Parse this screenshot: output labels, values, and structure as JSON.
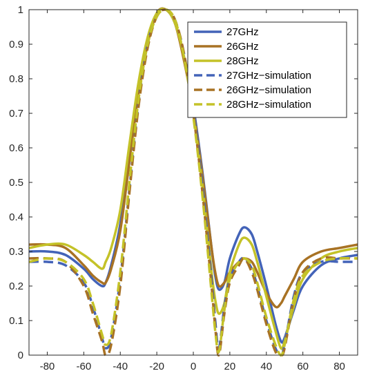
{
  "chart_data": {
    "type": "line",
    "title": "",
    "xlabel": "",
    "ylabel": "",
    "xlim": [
      -90,
      90
    ],
    "ylim": [
      0,
      1
    ],
    "xticks": [
      -80,
      -60,
      -40,
      -20,
      0,
      20,
      40,
      60,
      80
    ],
    "yticks": [
      0,
      0.1,
      0.2,
      0.3,
      0.4,
      0.5,
      0.6,
      0.7,
      0.8,
      0.9,
      1
    ],
    "grid": false,
    "legend_position": "top-right",
    "x": [
      -90,
      -80,
      -70,
      -60,
      -55,
      -50,
      -48,
      -45,
      -40,
      -35,
      -30,
      -25,
      -20,
      -15,
      -10,
      -5,
      0,
      5,
      10,
      12,
      14,
      17,
      20,
      25,
      28,
      32,
      35,
      40,
      45,
      48,
      50,
      55,
      60,
      70,
      80,
      90
    ],
    "series": [
      {
        "name": "27GHz",
        "color": "#4363b8",
        "dash": "solid",
        "values": [
          0.3,
          0.3,
          0.29,
          0.25,
          0.22,
          0.2,
          0.21,
          0.26,
          0.38,
          0.58,
          0.77,
          0.91,
          0.99,
          1.0,
          0.96,
          0.86,
          0.72,
          0.53,
          0.31,
          0.23,
          0.19,
          0.21,
          0.28,
          0.35,
          0.37,
          0.35,
          0.3,
          0.2,
          0.09,
          0.04,
          0.05,
          0.13,
          0.2,
          0.26,
          0.28,
          0.29
        ]
      },
      {
        "name": "26GHz",
        "color": "#a87224",
        "dash": "solid",
        "values": [
          0.32,
          0.32,
          0.31,
          0.26,
          0.23,
          0.21,
          0.21,
          0.25,
          0.36,
          0.56,
          0.76,
          0.9,
          0.99,
          1.0,
          0.96,
          0.85,
          0.71,
          0.52,
          0.31,
          0.24,
          0.2,
          0.21,
          0.24,
          0.27,
          0.28,
          0.27,
          0.24,
          0.18,
          0.14,
          0.15,
          0.17,
          0.22,
          0.27,
          0.3,
          0.31,
          0.32
        ]
      },
      {
        "name": "28GHz",
        "color": "#c4c228",
        "dash": "solid",
        "values": [
          0.31,
          0.32,
          0.32,
          0.29,
          0.27,
          0.25,
          0.27,
          0.31,
          0.42,
          0.61,
          0.79,
          0.92,
          0.99,
          1.0,
          0.96,
          0.86,
          0.7,
          0.49,
          0.24,
          0.16,
          0.12,
          0.15,
          0.24,
          0.32,
          0.34,
          0.32,
          0.27,
          0.17,
          0.07,
          0.02,
          0.04,
          0.14,
          0.22,
          0.28,
          0.3,
          0.31
        ]
      },
      {
        "name": "27GHz−simulation",
        "color": "#4363b8",
        "dash": "dashed",
        "values": [
          0.27,
          0.27,
          0.26,
          0.21,
          0.14,
          0.05,
          0.02,
          0.05,
          0.22,
          0.48,
          0.73,
          0.9,
          0.98,
          1.0,
          0.97,
          0.87,
          0.71,
          0.49,
          0.22,
          0.1,
          0.02,
          0.14,
          0.22,
          0.27,
          0.28,
          0.25,
          0.2,
          0.1,
          0.02,
          0.0,
          0.03,
          0.17,
          0.24,
          0.27,
          0.27,
          0.27
        ]
      },
      {
        "name": "26GHz−simulation",
        "color": "#a87224",
        "dash": "dashed",
        "values": [
          0.28,
          0.28,
          0.27,
          0.2,
          0.12,
          0.04,
          0.0,
          0.03,
          0.2,
          0.47,
          0.72,
          0.89,
          0.98,
          1.0,
          0.97,
          0.87,
          0.7,
          0.47,
          0.2,
          0.08,
          0.0,
          0.12,
          0.21,
          0.26,
          0.28,
          0.24,
          0.19,
          0.09,
          0.01,
          0.0,
          0.02,
          0.16,
          0.24,
          0.28,
          0.28,
          0.28
        ]
      },
      {
        "name": "28GHz−simulation",
        "color": "#c4c228",
        "dash": "dashed",
        "values": [
          0.27,
          0.28,
          0.27,
          0.22,
          0.15,
          0.06,
          0.03,
          0.06,
          0.24,
          0.5,
          0.74,
          0.9,
          0.98,
          1.0,
          0.97,
          0.86,
          0.69,
          0.46,
          0.18,
          0.07,
          0.01,
          0.13,
          0.22,
          0.27,
          0.28,
          0.26,
          0.21,
          0.11,
          0.03,
          0.0,
          0.03,
          0.16,
          0.23,
          0.27,
          0.28,
          0.28
        ]
      }
    ]
  }
}
